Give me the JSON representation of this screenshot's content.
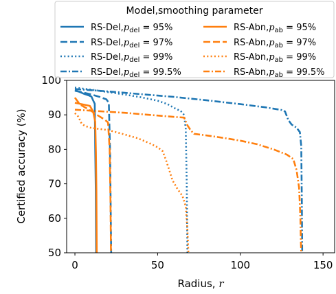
{
  "chart_data": {
    "type": "line",
    "title": "",
    "xlabel": "Radius, r",
    "ylabel": "Certified accuracy (%)",
    "xlim": [
      -5,
      157
    ],
    "ylim": [
      50,
      100
    ],
    "xticks": [
      0,
      50,
      100,
      150
    ],
    "yticks": [
      50,
      60,
      70,
      80,
      90,
      100
    ],
    "grid": false,
    "legend": {
      "title": "Model,smoothing parameter",
      "placement": "top",
      "columns": 2
    },
    "colors": {
      "del": "#1f77b4",
      "abn": "#ff7f0e"
    },
    "series": [
      {
        "name": "RS-Del,p_del = 95%",
        "label_text": "RS-Del,",
        "param_sym": "p",
        "param_sub": "del",
        "param_val": " = 95%",
        "color": "#1f77b4",
        "style": "solid",
        "points": [
          [
            0,
            97.2
          ],
          [
            2,
            96.8
          ],
          [
            5,
            96.2
          ],
          [
            8,
            95.7
          ],
          [
            10,
            95.3
          ],
          [
            11,
            94.2
          ],
          [
            12,
            93.2
          ],
          [
            12.3,
            80
          ],
          [
            12.6,
            68
          ],
          [
            12.8,
            50
          ]
        ]
      },
      {
        "name": "RS-Del,p_del = 97%",
        "label_text": "RS-Del,",
        "param_sym": "p",
        "param_sub": "del",
        "param_val": " = 97%",
        "color": "#1f77b4",
        "style": "dash",
        "points": [
          [
            0,
            97.0
          ],
          [
            5,
            96.5
          ],
          [
            10,
            95.9
          ],
          [
            15,
            95.2
          ],
          [
            19,
            94.5
          ],
          [
            20.5,
            93.5
          ],
          [
            21.2,
            80
          ],
          [
            21.6,
            65
          ],
          [
            21.9,
            50
          ]
        ]
      },
      {
        "name": "RS-Del,p_del = 99%",
        "label_text": "RS-Del,",
        "param_sym": "p",
        "param_sub": "del",
        "param_val": " = 99%",
        "color": "#1f77b4",
        "style": "dot",
        "points": [
          [
            0,
            97.9
          ],
          [
            10,
            97.3
          ],
          [
            20,
            96.6
          ],
          [
            30,
            95.9
          ],
          [
            40,
            95.1
          ],
          [
            50,
            94.1
          ],
          [
            56,
            93.1
          ],
          [
            60,
            92.0
          ],
          [
            64,
            91.1
          ],
          [
            66,
            90.0
          ],
          [
            67,
            86.0
          ],
          [
            67.6,
            70.0
          ],
          [
            68,
            50
          ]
        ]
      },
      {
        "name": "RS-Del,p_del = 99.5%",
        "label_text": "RS-Del,",
        "param_sym": "p",
        "param_sub": "del",
        "param_val": " = 99.5%",
        "color": "#1f77b4",
        "style": "dashdot",
        "points": [
          [
            0,
            97.5
          ],
          [
            20,
            96.8
          ],
          [
            40,
            96.0
          ],
          [
            60,
            95.2
          ],
          [
            80,
            94.2
          ],
          [
            100,
            93.1
          ],
          [
            115,
            92.2
          ],
          [
            125,
            91.4
          ],
          [
            127,
            91.0
          ],
          [
            129,
            88.5
          ],
          [
            131,
            87.2
          ],
          [
            134,
            86.3
          ],
          [
            136,
            85.0
          ],
          [
            136.8,
            81
          ],
          [
            137.2,
            65
          ],
          [
            137.4,
            50
          ]
        ]
      },
      {
        "name": "RS-Abn,p_ab = 95%",
        "label_text": "RS-Abn,",
        "param_sym": "p",
        "param_sub": "ab",
        "param_val": " = 95%",
        "color": "#ff7f0e",
        "style": "solid",
        "points": [
          [
            0,
            93.5
          ],
          [
            3,
            93.2
          ],
          [
            6,
            92.9
          ],
          [
            9,
            92.6
          ],
          [
            11,
            91.0
          ],
          [
            12.3,
            88.0
          ],
          [
            12.7,
            79.0
          ],
          [
            13.0,
            68.0
          ],
          [
            13.2,
            50
          ]
        ]
      },
      {
        "name": "RS-Abn,p_ab = 97%",
        "label_text": "RS-Abn,",
        "param_sym": "p",
        "param_sub": "ab",
        "param_val": " = 97%",
        "color": "#ff7f0e",
        "style": "dash",
        "points": [
          [
            0,
            95.0
          ],
          [
            3,
            93.0
          ],
          [
            6,
            92.2
          ],
          [
            10,
            91.1
          ],
          [
            14,
            89.8
          ],
          [
            18,
            88.6
          ],
          [
            20,
            87.8
          ],
          [
            21,
            80
          ],
          [
            21.5,
            65
          ],
          [
            21.8,
            50
          ]
        ]
      },
      {
        "name": "RS-Abn,p_ab = 99%",
        "label_text": "RS-Abn,",
        "param_sym": "p",
        "param_sub": "ab",
        "param_val": " = 99%",
        "color": "#ff7f0e",
        "style": "dot",
        "points": [
          [
            0,
            90.5
          ],
          [
            2,
            89.5
          ],
          [
            4,
            87.5
          ],
          [
            6,
            86.8
          ],
          [
            10,
            86.2
          ],
          [
            20,
            85.6
          ],
          [
            30,
            84.3
          ],
          [
            38,
            83.2
          ],
          [
            45,
            81.8
          ],
          [
            50,
            80.6
          ],
          [
            53,
            79.5
          ],
          [
            55,
            77.0
          ],
          [
            57,
            74.0
          ],
          [
            59,
            71.0
          ],
          [
            62,
            68.5
          ],
          [
            65,
            66.5
          ],
          [
            67,
            63.5
          ],
          [
            68,
            57.0
          ],
          [
            68.6,
            50
          ]
        ]
      },
      {
        "name": "RS-Abn,p_ab = 99.5%",
        "label_text": "RS-Abn,",
        "param_sym": "p",
        "param_sub": "ab",
        "param_val": " = 99.5%",
        "color": "#ff7f0e",
        "style": "dashdot",
        "points": [
          [
            0,
            91.5
          ],
          [
            10,
            91.2
          ],
          [
            20,
            90.9
          ],
          [
            30,
            90.6
          ],
          [
            40,
            90.2
          ],
          [
            50,
            89.8
          ],
          [
            60,
            89.4
          ],
          [
            66,
            89.2
          ],
          [
            68,
            87.0
          ],
          [
            70,
            85.5
          ],
          [
            72,
            84.5
          ],
          [
            80,
            84.0
          ],
          [
            90,
            83.3
          ],
          [
            100,
            82.5
          ],
          [
            110,
            81.5
          ],
          [
            120,
            80.0
          ],
          [
            128,
            78.5
          ],
          [
            132,
            77.2
          ],
          [
            134,
            74.0
          ],
          [
            135.5,
            69.0
          ],
          [
            136,
            64.0
          ],
          [
            136.3,
            60.0
          ],
          [
            136.6,
            53.0
          ],
          [
            136.8,
            50
          ]
        ]
      }
    ]
  }
}
